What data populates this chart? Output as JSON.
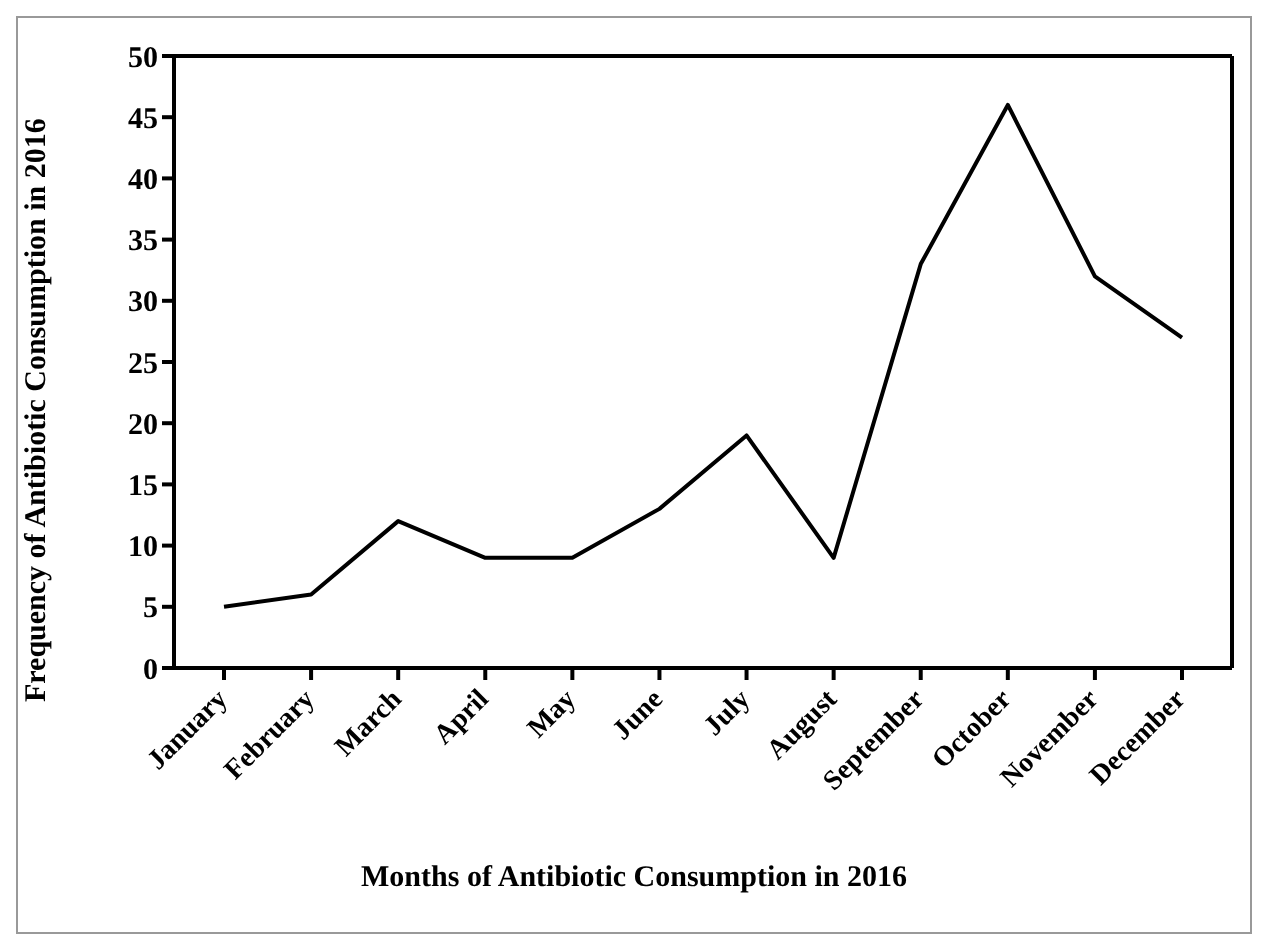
{
  "chart_data": {
    "type": "line",
    "xlabel": "Months of Antibiotic Consumption in 2016",
    "ylabel": "Frequency of Antibiotic Consumption in 2016",
    "categories": [
      "January",
      "February",
      "March",
      "April",
      "May",
      "June",
      "July",
      "August",
      "September",
      "October",
      "November",
      "December"
    ],
    "series": [
      {
        "color": "#000000",
        "values": [
          5,
          6,
          12,
          9,
          9,
          13,
          19,
          9,
          33,
          46,
          32,
          27
        ]
      }
    ],
    "ylim": [
      0,
      50
    ],
    "yticks": [
      0,
      5,
      10,
      15,
      20,
      25,
      30,
      35,
      40,
      45,
      50
    ],
    "grid": false,
    "legend": false,
    "marker": "none",
    "line_style": "solid"
  }
}
